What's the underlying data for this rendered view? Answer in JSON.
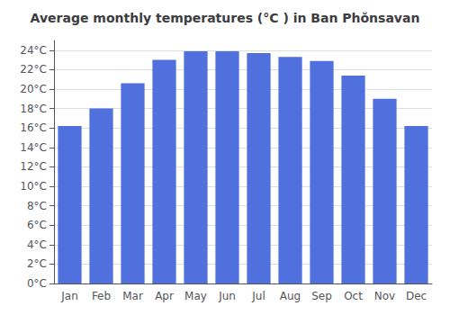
{
  "chart_data": {
    "type": "bar",
    "title": "Average monthly temperatures (°C ) in Ban Phŏnsavan",
    "categories": [
      "Jan",
      "Feb",
      "Mar",
      "Apr",
      "May",
      "Jun",
      "Jul",
      "Aug",
      "Sep",
      "Oct",
      "Nov",
      "Dec"
    ],
    "values": [
      16.2,
      18.0,
      20.6,
      23.0,
      23.9,
      23.9,
      23.7,
      23.3,
      22.9,
      21.4,
      19.0,
      16.2
    ],
    "ylim": [
      0,
      25
    ],
    "yticks": [
      {
        "value": 0,
        "label": "0°C"
      },
      {
        "value": 2,
        "label": "2°C"
      },
      {
        "value": 4,
        "label": "4°C"
      },
      {
        "value": 6,
        "label": "6°C"
      },
      {
        "value": 8,
        "label": "8°C"
      },
      {
        "value": 10,
        "label": "10°C"
      },
      {
        "value": 12,
        "label": "12°C"
      },
      {
        "value": 14,
        "label": "14°C"
      },
      {
        "value": 16,
        "label": "16°C"
      },
      {
        "value": 18,
        "label": "18°C"
      },
      {
        "value": 20,
        "label": "20°C"
      },
      {
        "value": 22,
        "label": "22°C"
      },
      {
        "value": 24,
        "label": "24°C"
      }
    ],
    "grid": true
  }
}
